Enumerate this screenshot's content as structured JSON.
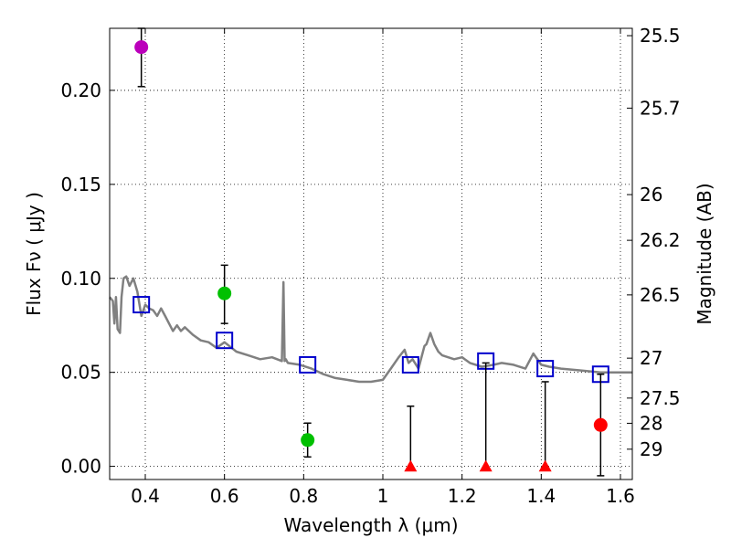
{
  "chart_data": {
    "type": "scatter",
    "xlabel": "Wavelength  λ (μm)",
    "ylabel": "Flux  Fν  ( μJy )",
    "ylabel_right": "Magnitude (AB)",
    "xlim": [
      0.31,
      1.63
    ],
    "ylim": [
      -0.007,
      0.233
    ],
    "x_ticks": [
      0.4,
      0.6,
      0.8,
      1.0,
      1.2,
      1.4,
      1.6
    ],
    "x_tick_labels": [
      "0.4",
      "0.6",
      "0.8",
      "1",
      "1.2",
      "1.4",
      "1.6"
    ],
    "y_ticks": [
      0.0,
      0.05,
      0.1,
      0.15,
      0.2
    ],
    "y_tick_labels": [
      "0.00",
      "0.05",
      "0.10",
      "0.15",
      "0.20"
    ],
    "magnitude_ticks": [
      "25.5",
      "25.7",
      "26",
      "26.2",
      "26.5",
      "27",
      "27.5",
      "28",
      "29"
    ],
    "grid": true,
    "colors": {
      "template": "#808080",
      "model_points": "#0000cc",
      "purple": "#bb00bb",
      "green": "#00c000",
      "red": "#ff0000",
      "error_bar": "#000000"
    },
    "template_sed": {
      "name": "template spectrum",
      "x": [
        0.31,
        0.318,
        0.322,
        0.326,
        0.33,
        0.336,
        0.34,
        0.345,
        0.352,
        0.36,
        0.37,
        0.38,
        0.39,
        0.4,
        0.41,
        0.42,
        0.43,
        0.44,
        0.45,
        0.46,
        0.47,
        0.48,
        0.49,
        0.5,
        0.52,
        0.54,
        0.56,
        0.58,
        0.6,
        0.63,
        0.66,
        0.69,
        0.72,
        0.745,
        0.749,
        0.752,
        0.755,
        0.76,
        0.79,
        0.82,
        0.85,
        0.88,
        0.91,
        0.94,
        0.97,
        1.0,
        1.02,
        1.04,
        1.055,
        1.065,
        1.075,
        1.09,
        1.105,
        1.11,
        1.12,
        1.13,
        1.14,
        1.15,
        1.18,
        1.2,
        1.22,
        1.25,
        1.28,
        1.3,
        1.33,
        1.36,
        1.38,
        1.4,
        1.42,
        1.45,
        1.5,
        1.55,
        1.6,
        1.63
      ],
      "y": [
        0.09,
        0.088,
        0.076,
        0.09,
        0.073,
        0.071,
        0.09,
        0.1,
        0.101,
        0.096,
        0.1,
        0.093,
        0.08,
        0.086,
        0.084,
        0.083,
        0.08,
        0.084,
        0.08,
        0.076,
        0.072,
        0.075,
        0.072,
        0.074,
        0.07,
        0.067,
        0.066,
        0.063,
        0.066,
        0.061,
        0.059,
        0.057,
        0.058,
        0.056,
        0.098,
        0.056,
        0.057,
        0.055,
        0.054,
        0.052,
        0.049,
        0.047,
        0.046,
        0.045,
        0.045,
        0.046,
        0.052,
        0.058,
        0.062,
        0.055,
        0.057,
        0.052,
        0.064,
        0.065,
        0.071,
        0.065,
        0.061,
        0.059,
        0.057,
        0.058,
        0.055,
        0.053,
        0.054,
        0.055,
        0.054,
        0.052,
        0.06,
        0.054,
        0.053,
        0.052,
        0.051,
        0.05,
        0.05,
        0.05
      ]
    },
    "model_points": {
      "name": "model bandpass fluxes",
      "x": [
        0.39,
        0.6,
        0.81,
        1.07,
        1.26,
        1.41,
        1.55
      ],
      "y": [
        0.086,
        0.067,
        0.054,
        0.054,
        0.056,
        0.052,
        0.049
      ]
    },
    "observed": [
      {
        "x": 0.39,
        "y": 0.223,
        "err_low": 0.021,
        "err_high": 0.01,
        "kind": "detection",
        "color": "purple"
      },
      {
        "x": 0.6,
        "y": 0.092,
        "err_low": 0.016,
        "err_high": 0.015,
        "kind": "detection",
        "color": "green"
      },
      {
        "x": 0.81,
        "y": 0.014,
        "err_low": 0.009,
        "err_high": 0.009,
        "kind": "detection",
        "color": "green"
      },
      {
        "x": 1.07,
        "y": 0.0,
        "err_low": 0.0,
        "err_high": 0.032,
        "kind": "upper_limit",
        "color": "red"
      },
      {
        "x": 1.26,
        "y": 0.0,
        "err_low": 0.0,
        "err_high": 0.055,
        "kind": "upper_limit",
        "color": "red"
      },
      {
        "x": 1.41,
        "y": 0.0,
        "err_low": 0.0,
        "err_high": 0.045,
        "kind": "upper_limit",
        "color": "red"
      },
      {
        "x": 1.55,
        "y": 0.022,
        "err_low": 0.027,
        "err_high": 0.027,
        "kind": "detection",
        "color": "red"
      }
    ]
  }
}
